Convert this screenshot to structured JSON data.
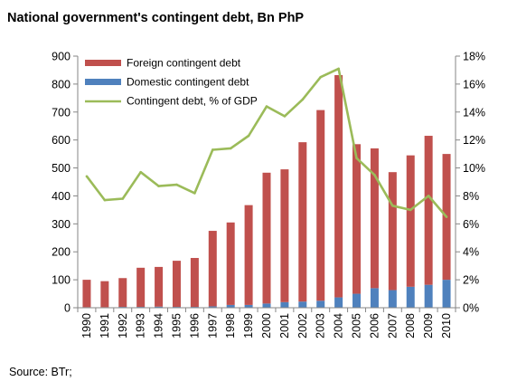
{
  "chart_data": {
    "type": "bar",
    "title": "National government's contingent debt, Bn PhP",
    "categories": [
      "1990",
      "1991",
      "1992",
      "1993",
      "1994",
      "1995",
      "1996",
      "1997",
      "1998",
      "1999",
      "2000",
      "2001",
      "2002",
      "2003",
      "2004",
      "2005",
      "2006",
      "2007",
      "2008",
      "2009",
      "2010"
    ],
    "stacked": true,
    "series": [
      {
        "name": "Foreign contingent debt",
        "kind": "bar",
        "axis": "left",
        "color": "#C0504D",
        "values": [
          98,
          93,
          103,
          140,
          142,
          165,
          175,
          270,
          295,
          357,
          468,
          475,
          570,
          682,
          795,
          535,
          500,
          422,
          470,
          533,
          450
        ]
      },
      {
        "name": "Domestic contingent debt",
        "kind": "bar",
        "axis": "left",
        "color": "#4F81BD",
        "values": [
          2,
          2,
          3,
          3,
          4,
          3,
          3,
          5,
          10,
          10,
          15,
          20,
          22,
          25,
          37,
          50,
          70,
          63,
          75,
          82,
          100
        ]
      },
      {
        "name": "Contingent debt, % of GDP",
        "kind": "line",
        "axis": "right",
        "color": "#9BBB59",
        "values": [
          9.4,
          7.7,
          7.8,
          9.7,
          8.7,
          8.8,
          8.2,
          11.3,
          11.4,
          12.3,
          14.4,
          13.7,
          14.9,
          16.5,
          17.1,
          10.7,
          9.5,
          7.3,
          7.0,
          8.0,
          6.5
        ]
      }
    ],
    "y_left": {
      "min": 0,
      "max": 900,
      "step": 100,
      "tick_labels": [
        "0",
        "100",
        "200",
        "300",
        "400",
        "500",
        "600",
        "700",
        "800",
        "900"
      ]
    },
    "y_right": {
      "min": 0,
      "max": 18,
      "step": 2,
      "tick_labels": [
        "0%",
        "2%",
        "4%",
        "6%",
        "8%",
        "10%",
        "12%",
        "14%",
        "16%",
        "18%"
      ]
    },
    "xlabel": "",
    "ylabel": "",
    "grid": false,
    "legend_position": "top-left"
  },
  "source": "Source: BTr;"
}
